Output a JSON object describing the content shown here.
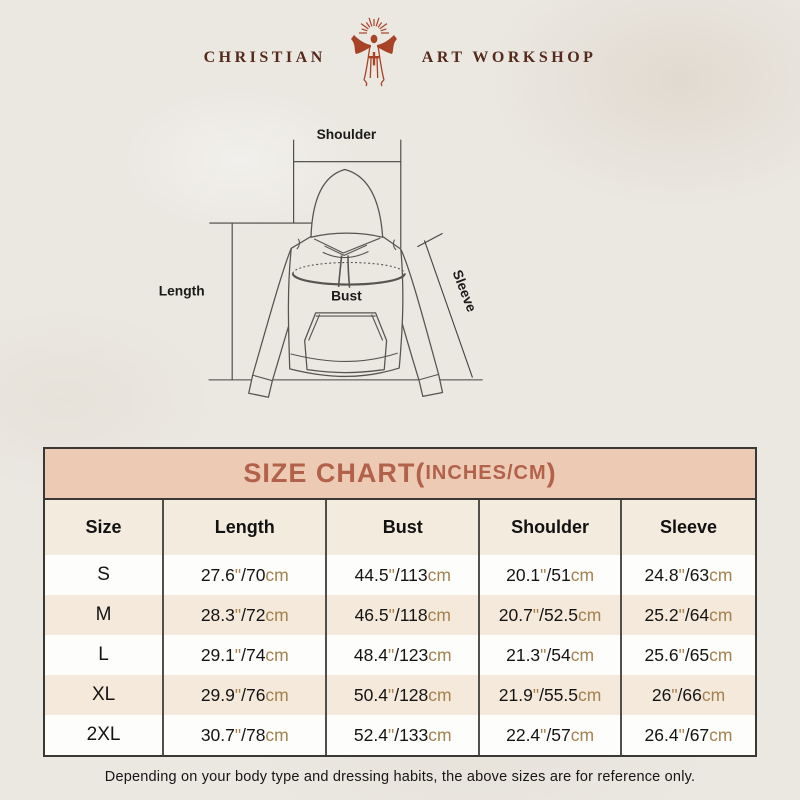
{
  "logo": {
    "left_text": "CHRISTIAN",
    "right_text": "ART WORKSHOP"
  },
  "diagram": {
    "labels": {
      "shoulder": "Shoulder",
      "length": "Length",
      "bust": "Bust",
      "sleeve": "Sleeve"
    }
  },
  "size_chart": {
    "title_main": "SIZE CHART(",
    "title_unit": "INCHES/CM",
    "title_close": ")",
    "unit_inch": "\"",
    "unit_cm": "cm",
    "separator": "/",
    "columns": [
      "Size",
      "Length",
      "Bust",
      "Shoulder",
      "Sleeve"
    ],
    "rows": [
      {
        "size": "S",
        "length": {
          "in": "27.6",
          "cm": "70"
        },
        "bust": {
          "in": "44.5",
          "cm": "113"
        },
        "shoulder": {
          "in": "20.1",
          "cm": "51"
        },
        "sleeve": {
          "in": "24.8",
          "cm": "63"
        }
      },
      {
        "size": "M",
        "length": {
          "in": "28.3",
          "cm": "72"
        },
        "bust": {
          "in": "46.5",
          "cm": "118"
        },
        "shoulder": {
          "in": "20.7",
          "cm": "52.5"
        },
        "sleeve": {
          "in": "25.2",
          "cm": "64"
        }
      },
      {
        "size": "L",
        "length": {
          "in": "29.1",
          "cm": "74"
        },
        "bust": {
          "in": "48.4",
          "cm": "123"
        },
        "shoulder": {
          "in": "21.3",
          "cm": "54"
        },
        "sleeve": {
          "in": "25.6",
          "cm": "65"
        }
      },
      {
        "size": "XL",
        "length": {
          "in": "29.9",
          "cm": "76"
        },
        "bust": {
          "in": "50.4",
          "cm": "128"
        },
        "shoulder": {
          "in": "21.9",
          "cm": "55.5"
        },
        "sleeve": {
          "in": "26",
          "cm": "66"
        }
      },
      {
        "size": "2XL",
        "length": {
          "in": "30.7",
          "cm": "78"
        },
        "bust": {
          "in": "52.4",
          "cm": "133"
        },
        "shoulder": {
          "in": "22.4",
          "cm": "57"
        },
        "sleeve": {
          "in": "26.4",
          "cm": "67"
        }
      }
    ]
  },
  "chart_data": {
    "type": "table",
    "title": "SIZE CHART(INCHES/CM)",
    "columns": [
      "Size",
      "Length",
      "Bust",
      "Shoulder",
      "Sleeve"
    ],
    "rows": [
      [
        "S",
        "27.6\"/70cm",
        "44.5\"/113cm",
        "20.1\"/51cm",
        "24.8\"/63cm"
      ],
      [
        "M",
        "28.3\"/72cm",
        "46.5\"/118cm",
        "20.7\"/52.5cm",
        "25.2\"/64cm"
      ],
      [
        "L",
        "29.1\"/74cm",
        "48.4\"/123cm",
        "21.3\"/54cm",
        "25.6\"/65cm"
      ],
      [
        "XL",
        "29.9\"/76cm",
        "50.4\"/128cm",
        "21.9\"/55.5cm",
        "26\"/66cm"
      ],
      [
        "2XL",
        "30.7\"/78cm",
        "52.4\"/133cm",
        "22.4\"/57cm",
        "26.4\"/67cm"
      ]
    ]
  },
  "footer": {
    "note": "Depending on your body type and dressing habits, the above sizes are for reference only."
  },
  "colors": {
    "page_background": "#ebe8e2",
    "title_band_background": "#edcab4",
    "title_band_text": "#b2614a",
    "row_beige": "#f4e9da",
    "row_white": "#fdfdfc",
    "unit_text": "#a3824f",
    "logo_maroon": "#a84327",
    "logo_text": "#55291b",
    "line_art": "#56544e"
  }
}
